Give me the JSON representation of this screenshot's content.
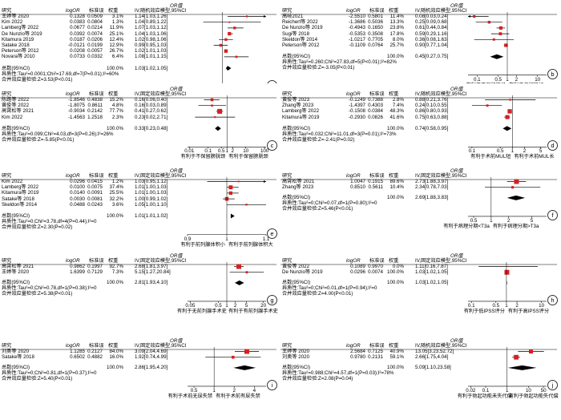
{
  "col_headers": {
    "study": "研究",
    "logor": "logOR",
    "se": "标准误",
    "weight": "权重",
    "or_random": "OR值\nIV,随机效应模型,95%CI",
    "or_fixed": "OR值\nIV,固定效应模型,95%CI",
    "or_top": "OR值",
    "or_iv_random": "IV,随机效应模型,95%CI",
    "or_iv_fixed": "IV,固定效应模型,95%CI",
    "or_row_top": "OR值"
  },
  "colors": {
    "marker": "#d62020",
    "diamond": "#000000",
    "line": "#000000"
  },
  "panels": [
    {
      "id": "a",
      "label": "a",
      "model": "random",
      "rows": [
        {
          "study": "王婷等 2020",
          "logor": "0.1328",
          "se": "0.0509",
          "w": "3.1%",
          "ci": "1.14[1.03,1.26]",
          "or": 1.14,
          "lo": 1.03,
          "hi": 1.26
        },
        {
          "study": "Kim 2022",
          "logor": "0.0383",
          "se": "0.0804",
          "w": "1.3%",
          "ci": "1.04[0.89,1.22]",
          "or": 1.04,
          "lo": 0.89,
          "hi": 1.22
        },
        {
          "study": "Lamberg等 2022",
          "logor": "0.0677",
          "se": "0.0214",
          "w": "11.9%",
          "ci": "1.07[1.03,1.12]",
          "or": 1.07,
          "lo": 1.03,
          "hi": 1.12
        },
        {
          "study": "De Nunzio等 2019",
          "logor": "0.0392",
          "se": "0.0074",
          "w": "25.1%",
          "ci": "1.04[1.03,1.06]",
          "or": 1.04,
          "lo": 1.03,
          "hi": 1.06
        },
        {
          "study": "Kitamura 2019",
          "logor": "0.0187",
          "se": "0.0206",
          "w": "12.4%",
          "ci": "1.02[0.98,1.06]",
          "or": 1.02,
          "lo": 0.98,
          "hi": 1.06
        },
        {
          "study": "Satake 2018",
          "logor": "-0.0121",
          "se": "0.0199",
          "w": "12.9%",
          "ci": "0.99[0.95,1.03]",
          "or": 0.99,
          "lo": 0.95,
          "hi": 1.03
        },
        {
          "study": "Peterson等 2012",
          "logor": "0.0208",
          "se": "0.0057",
          "w": "26.7%",
          "ci": "1.02[1.01,1.03]",
          "or": 1.02,
          "lo": 1.01,
          "hi": 1.03
        },
        {
          "study": "Novara等 2010",
          "logor": "0.0733",
          "se": "0.0332",
          "w": "6.4%",
          "ci": "1.08[1.01,1.15]",
          "or": 1.08,
          "lo": 1.01,
          "hi": 1.15
        }
      ],
      "total": {
        "label": "总数(95%CI)",
        "w": "100.0%",
        "ci": "1.03[1.02,1.05]",
        "or": 1.03,
        "lo": 1.02,
        "hi": 1.05
      },
      "het": "异质性:Tau²=0.0001;Chi²=17.69,df=7(P=0.01);I²=60%",
      "overall": "合并效应量检验:Z=3.53(P<0.01)",
      "axis": {
        "min": 0.8,
        "max": 1.25,
        "log": false,
        "ticks": [
          "0.8",
          "0.9",
          "1",
          "1.1",
          "1.25"
        ],
        "tick_vals": [
          0.8,
          0.9,
          1.0,
          1.1,
          1.25
        ]
      },
      "favor_left": "有利于低龄",
      "favor_right": "有利于高龄"
    },
    {
      "id": "b",
      "label": "b",
      "model": "random",
      "rows": [
        {
          "study": "高岐2021",
          "logor": "-2.5510",
          "se": "0.5801",
          "w": "11.4%",
          "ci": "0.08[0.03,0.24]",
          "or": 0.08,
          "lo": 0.03,
          "hi": 0.24
        },
        {
          "study": "Reichert等 2022",
          "logor": "-1.3686",
          "se": "0.5036",
          "w": "13.3%",
          "ci": "0.25[0.09,0.68]",
          "or": 0.25,
          "lo": 0.09,
          "hi": 0.68
        },
        {
          "study": "De Nunzio等 2019",
          "logor": "-0.4943",
          "se": "0.1650",
          "w": "23.8%",
          "ci": "0.61[0.44,0.84]",
          "or": 0.61,
          "lo": 0.44,
          "hi": 0.84
        },
        {
          "study": "Sugi等 2018",
          "logor": "-0.5353",
          "se": "0.3508",
          "w": "17.8%",
          "ci": "0.59[0.29,1.16]",
          "or": 0.59,
          "lo": 0.29,
          "hi": 1.16
        },
        {
          "study": "Skeldon等 2014",
          "logor": "-1.0217",
          "se": "0.7705",
          "w": "8.0%",
          "ci": "0.36[0.08,1.63]",
          "or": 0.36,
          "lo": 0.08,
          "hi": 1.63
        },
        {
          "study": "Peterson等 2012",
          "logor": "-0.1109",
          "se": "0.0764",
          "w": "25.7%",
          "ci": "0.90[0.77,1.04]",
          "or": 0.9,
          "lo": 0.77,
          "hi": 1.04
        }
      ],
      "total": {
        "label": "总数(95%CI)",
        "w": "100.0%",
        "ci": "0.45[0.27,0.75]",
        "or": 0.45,
        "lo": 0.27,
        "hi": 0.75
      },
      "het": "异质性:Tau²=0.260;Chi²=27.83,df=5(P<0.01);I²=82%",
      "overall": "合并效应量检验:Z=-3.05(P<0.01)",
      "axis": {
        "min": 0.05,
        "max": 20,
        "log": true,
        "ticks": [
          "0.1",
          "0.5",
          "1",
          "2",
          "10"
        ],
        "tick_vals": [
          0.1,
          0.5,
          1,
          2,
          10
        ]
      },
      "favor_left": "有利于不保留神经",
      "favor_right": "有利于保留神经"
    },
    {
      "id": "c",
      "label": "c",
      "model": "fixed",
      "rows": [
        {
          "study": "陈路等 2022",
          "logor": "-1.8546",
          "se": "0.4838",
          "w": "15.2%",
          "ci": "0.16[0.06,0.40]",
          "or": 0.16,
          "lo": 0.06,
          "hi": 0.4
        },
        {
          "study": "黄俊等 2022",
          "logor": "-1.8075",
          "se": "0.8611",
          "w": "4.8%",
          "ci": "0.16[0.03,0.89]",
          "or": 0.16,
          "lo": 0.03,
          "hi": 0.89
        },
        {
          "study": "高霄松等 2021",
          "logor": "-0.9034",
          "se": "0.2142",
          "w": "77.7%",
          "ci": "0.41[0.27,0.62]",
          "or": 0.41,
          "lo": 0.27,
          "hi": 0.62
        },
        {
          "study": "Kim 2022",
          "logor": "-1.4563",
          "se": "1.2518",
          "w": "2.3%",
          "ci": "0.23[0.02,2.71]",
          "or": 0.23,
          "lo": 0.02,
          "hi": 2.71
        }
      ],
      "total": {
        "label": "总数(95%CI)",
        "w": "100.0%",
        "ci": "0.33[0.23,0.48]",
        "or": 0.33,
        "lo": 0.23,
        "hi": 0.48
      },
      "het": "异质性:Tau²=0.099;Chi²=4.03,df=3(P=0.26);I²=26%",
      "overall": "合并效应量检验:Z=-5.85(P<0.01)",
      "axis": {
        "min": 0.008,
        "max": 120,
        "log": true,
        "ticks": [
          "0.01",
          "0.1",
          "0.5",
          "1",
          "2",
          "10",
          "100"
        ],
        "tick_vals": [
          0.01,
          0.1,
          0.5,
          1,
          2,
          10,
          100
        ]
      },
      "favor_left": "有利于不保留膀胱颈",
      "favor_right": "有利于保留膀胱颈"
    },
    {
      "id": "d",
      "label": "d",
      "model": "random",
      "rows": [
        {
          "study": "黄俊等 2023",
          "logor": "-0.1249",
          "se": "0.7388",
          "w": "2.8%",
          "ci": "0.88[0.21,3.76]",
          "or": 0.88,
          "lo": 0.21,
          "hi": 3.76
        },
        {
          "study": "Zhang等 2023",
          "logor": "-1.4397",
          "se": "0.4303",
          "w": "7.4%",
          "ci": "0.24[0.10,0.55]",
          "or": 0.24,
          "lo": 0.1,
          "hi": 0.55
        },
        {
          "study": "Lamberg等 2022",
          "logor": "-0.1508",
          "se": "0.0384",
          "w": "48.3%",
          "ci": "0.86[0.80,0.93]",
          "or": 0.86,
          "lo": 0.8,
          "hi": 0.93
        },
        {
          "study": "Kitamura等 2019",
          "logor": "-0.2930",
          "se": "0.0826",
          "w": "41.6%",
          "ci": "0.75[0.63,0.88]",
          "or": 0.75,
          "lo": 0.63,
          "hi": 0.88
        }
      ],
      "total": {
        "label": "总数(95%CI)",
        "w": "100.0%",
        "ci": "0.74[0.58,0.95]",
        "or": 0.74,
        "lo": 0.58,
        "hi": 0.95
      },
      "het": "异质性:Tau²=0.032;Chi²=11.01,df=3(P=0.01);I²=73%",
      "overall": "合并效应量检验:Z=-2.41(P=0.02)",
      "axis": {
        "min": 0.08,
        "max": 7,
        "log": true,
        "ticks": [
          "0.1",
          "0.5",
          "1",
          "2",
          "5"
        ],
        "tick_vals": [
          0.1,
          0.5,
          1,
          2,
          5
        ]
      },
      "favor_left": "有利于术前MUL短",
      "favor_right": "有利于术前MUL长"
    },
    {
      "id": "e",
      "label": "e",
      "model": "fixed",
      "rows": [
        {
          "study": "Kim 2022",
          "logor": "0.0296",
          "se": "0.0415",
          "w": "1.2%",
          "ci": "1.03[0.95,1.12]",
          "or": 1.03,
          "lo": 0.95,
          "hi": 1.12
        },
        {
          "study": "Lamberg等 2022",
          "logor": "0.0100",
          "se": "0.0075",
          "w": "37.4%",
          "ci": "1.01[1.00,1.03]",
          "or": 1.01,
          "lo": 1.0,
          "hi": 1.03
        },
        {
          "study": "Kitamura等 2019",
          "logor": "0.0140",
          "se": "0.0091",
          "w": "25.5%",
          "ci": "1.01[1.00,1.03]",
          "or": 1.01,
          "lo": 1.0,
          "hi": 1.03
        },
        {
          "study": "Satake等 2018",
          "logor": "0.0030",
          "se": "0.0081",
          "w": "32.2%",
          "ci": "1.00[0.99,1.02]",
          "or": 1.0,
          "lo": 0.99,
          "hi": 1.02
        },
        {
          "study": "Skeldon等 2014",
          "logor": "0.0488",
          "se": "0.0243",
          "w": "3.6%",
          "ci": "1.05[1.00,1.10]",
          "or": 1.05,
          "lo": 1.0,
          "hi": 1.1
        }
      ],
      "total": {
        "label": "总数(95%CI)",
        "w": "100.0%",
        "ci": "1.01[1.01,1.02]",
        "or": 1.01,
        "lo": 1.01,
        "hi": 1.02
      },
      "het": "异质性:Tau²=0;Chi²=3.78,df=4(P=0.44);I²=0",
      "overall": "合并效应量检验:Z=2.30(P=0.02)",
      "axis": {
        "min": 0.9,
        "max": 1.1,
        "log": false,
        "ticks": [
          "0.9",
          "1",
          "1.1"
        ],
        "tick_vals": [
          0.9,
          1.0,
          1.1
        ]
      },
      "favor_left": "有利于前列腺体积小",
      "favor_right": "有利于前列腺体积大"
    },
    {
      "id": "f",
      "label": "f",
      "model": "fixed",
      "rows": [
        {
          "study": "高霄松等 2021",
          "logor": "1.0047",
          "se": "0.1915",
          "w": "89.6%",
          "ci": "2.73[1.88,3.97]",
          "or": 2.73,
          "lo": 1.88,
          "hi": 3.97
        },
        {
          "study": "Zhang等 2023",
          "logor": "0.8510",
          "se": "0.5611",
          "w": "10.4%",
          "ci": "2.34[0.78,7.03]",
          "or": 2.34,
          "lo": 0.78,
          "hi": 7.03
        }
      ],
      "total": {
        "label": "总数(95%CI)",
        "w": "100.0%",
        "ci": "2.69[1.88,3.83]",
        "or": 2.69,
        "lo": 1.88,
        "hi": 3.83
      },
      "het": "异质性:Tau²=0;Chi²=0.07,df=1(P=0.80);I²=0",
      "overall": "合并效应量检验:Z=5.46(P<0.01)",
      "axis": {
        "min": 0.4,
        "max": 9,
        "log": true,
        "ticks": [
          "0.5",
          "1",
          "2",
          "5"
        ],
        "tick_vals": [
          0.5,
          1,
          2,
          5
        ]
      },
      "favor_left": "有利于病理分期<T3a",
      "favor_right": "有利于病理分期>T3a"
    },
    {
      "id": "g",
      "label": "g",
      "model": "fixed",
      "rows": [
        {
          "study": "高霄松等 2021",
          "logor": "0.9862",
          "se": "0.1997",
          "w": "92.7%",
          "ci": "2.68[1.81,3.97]",
          "or": 2.68,
          "lo": 1.81,
          "hi": 3.97
        },
        {
          "study": "王婷等 2020",
          "logor": "1.6399",
          "se": "0.7129",
          "w": "7.3%",
          "ci": "5.15[1.27,20.84]",
          "or": 5.15,
          "lo": 1.27,
          "hi": 20.84
        }
      ],
      "total": {
        "label": "总数(95%CI)",
        "w": "100.0%",
        "ci": "2.81[1.93,4.10]",
        "or": 2.81,
        "lo": 1.93,
        "hi": 4.1
      },
      "het": "异质性:Tau²=0;Chi²=0.78,df=1(P=0.38);I²=0",
      "overall": "合并效应量检验:Z=5.38(P<0.01)",
      "axis": {
        "min": 0.04,
        "max": 25,
        "log": true,
        "ticks": [
          "0.05",
          "0.5",
          "1",
          "2",
          "5",
          "20"
        ],
        "tick_vals": [
          0.05,
          0.5,
          1,
          2,
          5,
          20
        ]
      },
      "favor_left": "有利于无前列腺手术史",
      "favor_right": "有利于有前列腺手术史"
    },
    {
      "id": "h",
      "label": "h",
      "model": "fixed",
      "rows": [
        {
          "study": "黄俊等 2022",
          "logor": "0.1089",
          "se": "0.9970",
          "w": "0.0%",
          "ci": "1.11[0.16,7.87]",
          "or": 1.11,
          "lo": 0.16,
          "hi": 7.87
        },
        {
          "study": "De Nunzio等 2019",
          "logor": "0.0296",
          "se": "0.0074",
          "w": "100.0%",
          "ci": "1.03[1.02,1.05]",
          "or": 1.03,
          "lo": 1.02,
          "hi": 1.05
        }
      ],
      "total": {
        "label": "总数(95%CI)",
        "w": "100.0%",
        "ci": "1.03[1.02,1.05]",
        "or": 1.03,
        "lo": 1.02,
        "hi": 1.05
      },
      "het": "异质性:Tau²=0;Chi²=0.01,df=1(P=0.94);I²=0",
      "overall": "合并效应量检验:Z=4.00(P<0.01)",
      "axis": {
        "min": 0.08,
        "max": 14,
        "log": true,
        "ticks": [
          "0.1",
          "0.5",
          "1",
          "2",
          "10"
        ],
        "tick_vals": [
          0.1,
          0.5,
          1,
          2,
          10
        ]
      },
      "favor_left": "有利于低IPSS评分",
      "favor_right": "有利于高IPSS评分"
    },
    {
      "id": "i",
      "label": "i",
      "model": "fixed",
      "rows": [
        {
          "study": "刘奥等 2020",
          "logor": "1.1285",
          "se": "0.2127",
          "w": "84.0%",
          "ci": "3.09[2.04,4.69]",
          "or": 3.09,
          "lo": 2.04,
          "hi": 4.69
        },
        {
          "study": "Satake等 2018",
          "logor": "0.6502",
          "se": "0.4882",
          "w": "16.0%",
          "ci": "1.92[0.74,4.99]",
          "or": 1.92,
          "lo": 0.74,
          "hi": 4.99
        }
      ],
      "total": {
        "label": "总数(95%CI)",
        "w": "100.0%",
        "ci": "2.86[1.95,4.20]",
        "or": 2.86,
        "lo": 1.95,
        "hi": 4.2
      },
      "het": "异质性:Tau²=0;Chi²=0.81,df=1(P=0.37);I²=0",
      "overall": "合并效应量检验:Z=5.40(P<0.01)",
      "axis": {
        "min": 0.4,
        "max": 6,
        "log": true,
        "ticks": [
          "0.5",
          "1",
          "2",
          "4"
        ],
        "tick_vals": [
          0.5,
          1,
          2,
          4
        ]
      },
      "favor_left": "有利于术前无尿失禁",
      "favor_right": "有利于术前有尿失禁"
    },
    {
      "id": "j",
      "label": "j",
      "model": "random",
      "rows": [
        {
          "study": "王婷等 2020",
          "logor": "2.5684",
          "se": "0.7125",
          "w": "40.9%",
          "ci": "13.05[3.23,52.72]",
          "or": 13.05,
          "lo": 3.23,
          "hi": 52.72
        },
        {
          "study": "刘奥等 2020",
          "logor": "0.9780",
          "se": "0.2131",
          "w": "59.1%",
          "ci": "2.66[1.75,4.04]",
          "or": 2.66,
          "lo": 1.75,
          "hi": 4.04
        }
      ],
      "total": {
        "label": "总数(95%CI)",
        "w": "100.0%",
        "ci": "5.09[1.10,23.58]",
        "or": 5.09,
        "lo": 1.1,
        "hi": 23.58
      },
      "het": "异质性:Tau²=0.988;Chi²=4.57,df=1(P=0.03);I²=78%",
      "overall": "合并效应量检验:Z=2.08(P=0.04)",
      "axis": {
        "min": 0.015,
        "max": 70,
        "log": true,
        "ticks": [
          "0.02",
          "0.1",
          "1",
          "10",
          "50"
        ],
        "tick_vals": [
          0.02,
          0.1,
          1,
          10,
          50
        ]
      },
      "favor_left": "有利于勃起功能未失代偿",
      "favor_right": "有利于勃起功能失代偿"
    }
  ]
}
